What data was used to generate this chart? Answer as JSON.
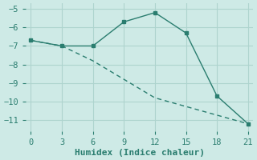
{
  "line1_x": [
    0,
    3,
    6,
    9,
    12,
    15,
    18,
    21
  ],
  "line1_y": [
    -6.7,
    -7.0,
    -7.0,
    -5.7,
    -5.2,
    -6.3,
    -9.7,
    -11.2
  ],
  "line2_x": [
    0,
    3,
    6,
    12,
    21
  ],
  "line2_y": [
    -6.7,
    -7.0,
    -7.8,
    -9.8,
    -11.2
  ],
  "line_color": "#2a7d6f",
  "background_color": "#ceeae6",
  "grid_color": "#aed4ce",
  "xlabel": "Humidex (Indice chaleur)",
  "xlim": [
    -0.5,
    21.5
  ],
  "ylim": [
    -11.6,
    -4.7
  ],
  "xticks": [
    0,
    3,
    6,
    9,
    12,
    15,
    18,
    21
  ],
  "yticks": [
    -11,
    -10,
    -9,
    -8,
    -7,
    -6,
    -5
  ],
  "xlabel_fontsize": 8,
  "tick_fontsize": 7.5,
  "marker_points": [
    1,
    2,
    3,
    4,
    5,
    6,
    7
  ]
}
